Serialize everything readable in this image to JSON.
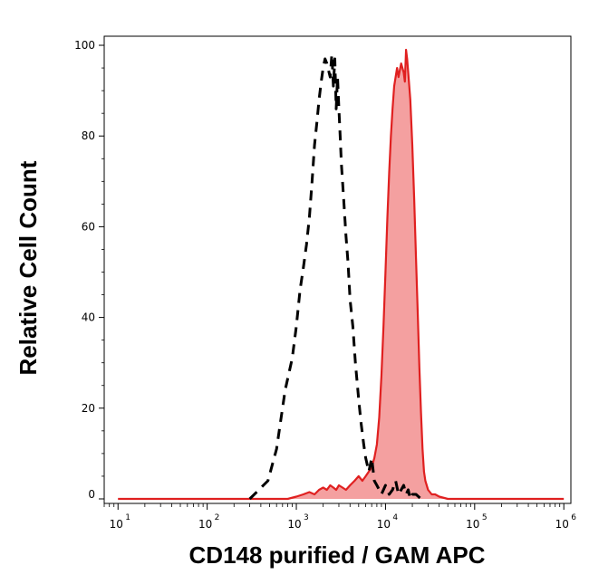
{
  "chart_data": {
    "type": "area",
    "title": "",
    "xlabel": "CD148 purified / GAM APC",
    "ylabel": "Relative Cell Count",
    "xscale": "log",
    "xlim": [
      7,
      1200000
    ],
    "ylim": [
      -1,
      102
    ],
    "grid": false,
    "legend": "none",
    "x_ticks": [
      {
        "base": "10",
        "exp": "1",
        "value": 10
      },
      {
        "base": "10",
        "exp": "2",
        "value": 100
      },
      {
        "base": "10",
        "exp": "3",
        "value": 1000
      },
      {
        "base": "10",
        "exp": "4",
        "value": 10000
      },
      {
        "base": "10",
        "exp": "5",
        "value": 100000
      },
      {
        "base": "10",
        "exp": "6",
        "value": 1000000
      }
    ],
    "y_ticks": [
      {
        "label": "0",
        "value": 0
      },
      {
        "label": "20",
        "value": 20
      },
      {
        "label": "40",
        "value": 40
      },
      {
        "label": "60",
        "value": 60
      },
      {
        "label": "80",
        "value": 80
      },
      {
        "label": "100",
        "value": 100
      }
    ],
    "series": [
      {
        "style": "dashed",
        "fill": "none",
        "color": "#000000",
        "x": [
          300,
          380,
          480,
          600,
          750,
          900,
          1000,
          1100,
          1200,
          1300,
          1400,
          1500,
          1600,
          1700,
          1800,
          1900,
          2000,
          2100,
          2200,
          2400,
          2500,
          2600,
          2700,
          2800,
          2900,
          3000,
          3100,
          3200,
          3400,
          3600,
          3800,
          4000,
          4300,
          4600,
          5000,
          5300,
          5700,
          6000,
          6500,
          7000,
          7500,
          8000,
          8500,
          9000,
          10000,
          11000,
          12000,
          13000,
          14000,
          15000,
          16000,
          17000,
          18000,
          19000,
          20000,
          22000,
          25000
        ],
        "y": [
          0,
          2,
          4,
          11,
          24,
          31,
          38,
          46,
          51,
          56,
          62,
          70,
          78,
          83,
          88,
          92,
          95,
          97,
          96,
          93,
          98,
          91,
          97,
          86,
          93,
          86,
          80,
          74,
          66,
          58,
          52,
          44,
          38,
          30,
          22,
          17,
          12,
          9,
          6,
          9,
          4,
          3,
          2,
          1,
          3,
          1,
          2,
          4,
          1,
          2,
          3,
          1,
          2,
          0,
          1,
          1,
          0
        ]
      },
      {
        "style": "solid",
        "fill": "#f4a0a0",
        "color": "#e02020",
        "x": [
          10,
          100,
          800,
          1000,
          1200,
          1400,
          1600,
          1800,
          2000,
          2200,
          2400,
          2600,
          2800,
          3000,
          3300,
          3600,
          4000,
          4500,
          5000,
          5500,
          6000,
          6500,
          7000,
          7500,
          8000,
          8500,
          9000,
          9500,
          10000,
          10500,
          11000,
          11500,
          12000,
          12500,
          13000,
          13500,
          14000,
          15000,
          16000,
          16500,
          17000,
          17500,
          18000,
          19000,
          20000,
          21000,
          22000,
          23000,
          24000,
          25000,
          26000,
          27000,
          28000,
          30000,
          33000,
          36000,
          40000,
          50000,
          100000,
          1000000
        ],
        "y": [
          0,
          0,
          0,
          0.5,
          1,
          1.5,
          1,
          2,
          2.5,
          2,
          3,
          2.5,
          2,
          3,
          2.5,
          2,
          3,
          4,
          5,
          4,
          5,
          6,
          7,
          9,
          12,
          18,
          27,
          38,
          50,
          62,
          72,
          80,
          86,
          91,
          93,
          95,
          93,
          96,
          94,
          92,
          99,
          97,
          94,
          88,
          78,
          66,
          53,
          41,
          29,
          19,
          11,
          6,
          4,
          2,
          1,
          1,
          0.5,
          0,
          0,
          0
        ]
      }
    ]
  }
}
